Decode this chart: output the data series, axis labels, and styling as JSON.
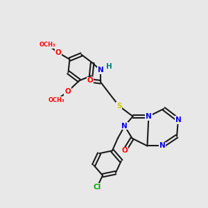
{
  "background_color": "#e8e8e8",
  "bond_color": "#1a1a1a",
  "atom_colors": {
    "O": "#ff0000",
    "N": "#0000ee",
    "S": "#cccc00",
    "Cl": "#00aa00",
    "H": "#008080",
    "C": "#1a1a1a"
  },
  "lw": 1.5,
  "dbl_off": 2.3,
  "fs": 7.5
}
